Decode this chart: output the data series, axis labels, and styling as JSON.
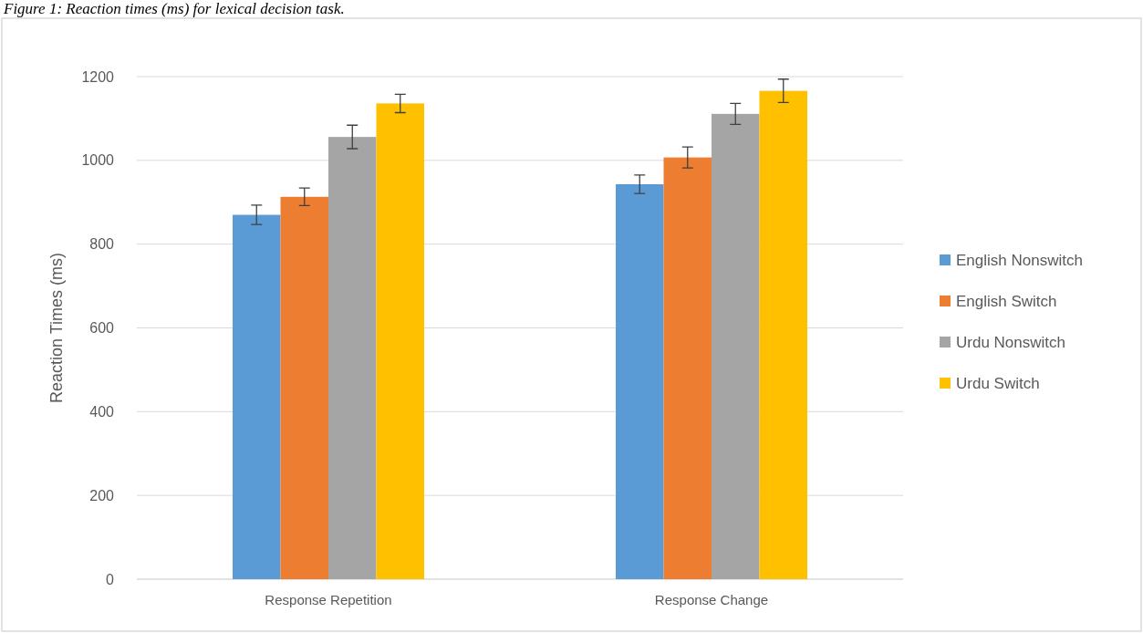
{
  "chart_data": {
    "type": "bar",
    "title": "Figure 1: Reaction times (ms) for lexical decision task.",
    "ylabel": "Reaction Times (ms)",
    "categories": [
      "Response Repetition",
      "Response Change"
    ],
    "series": [
      {
        "name": "English Nonswitch",
        "color": "#5b9bd5",
        "values": [
          870,
          943
        ],
        "errors": [
          23,
          22
        ]
      },
      {
        "name": "English Switch",
        "color": "#ed7d31",
        "values": [
          913,
          1007
        ],
        "errors": [
          21,
          25
        ]
      },
      {
        "name": "Urdu Nonswitch",
        "color": "#a5a5a5",
        "values": [
          1056,
          1111
        ],
        "errors": [
          28,
          25
        ]
      },
      {
        "name": "Urdu Switch",
        "color": "#ffc000",
        "values": [
          1136,
          1166
        ],
        "errors": [
          22,
          28
        ]
      }
    ],
    "ylim": [
      0,
      1200
    ],
    "yticks": [
      0,
      200,
      400,
      600,
      800,
      1000,
      1200
    ],
    "grid": "y",
    "legend": "right"
  }
}
